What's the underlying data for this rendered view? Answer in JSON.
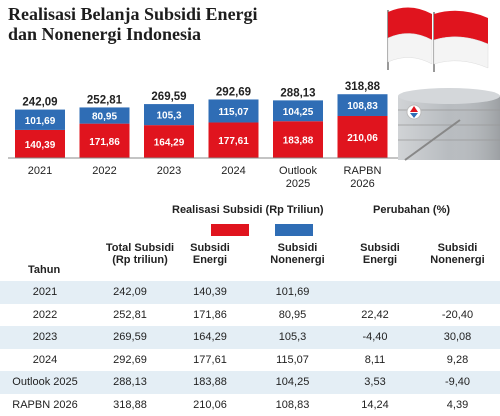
{
  "title_line1": "Realisasi Belanja Subsidi Energi",
  "title_line2": "dan Nonenergi Indonesia",
  "colors": {
    "energi": "#e0141e",
    "nonenergi": "#2f6db5",
    "row_alt": "#e4eef5"
  },
  "chart_data": {
    "type": "bar",
    "stacked": true,
    "categories": [
      "2021",
      "2022",
      "2023",
      "2024",
      "Outlook 2025",
      "RAPBN 2026"
    ],
    "category_lines": [
      [
        "2021"
      ],
      [
        "2022"
      ],
      [
        "2023"
      ],
      [
        "2024"
      ],
      [
        "Outlook",
        "2025"
      ],
      [
        "RAPBN",
        "2026"
      ]
    ],
    "series": [
      {
        "name": "Subsidi Energi",
        "values": [
          140.39,
          171.86,
          164.29,
          177.61,
          183.88,
          210.06
        ],
        "labels": [
          "140,39",
          "171,86",
          "164,29",
          "177,61",
          "183,88",
          "210,06"
        ]
      },
      {
        "name": "Subsidi Nonenergi",
        "values": [
          101.69,
          80.95,
          105.3,
          115.07,
          104.25,
          108.83
        ],
        "labels": [
          "101,69",
          "80,95",
          "105,3",
          "115,07",
          "104,25",
          "108,83"
        ]
      }
    ],
    "totals": [
      242.09,
      252.81,
      269.59,
      292.69,
      288.13,
      318.88
    ],
    "total_labels": [
      "242,09",
      "252,81",
      "269,59",
      "292,69",
      "288,13",
      "318,88"
    ]
  },
  "table": {
    "group_realisasi": "Realisasi Subsidi (Rp Triliun)",
    "group_perubahan": "Perubahan (%)",
    "col_tahun": "Tahun",
    "col_total": [
      "Total Subsidi",
      "(Rp triliun)"
    ],
    "col_energi": [
      "Subsidi",
      "Energi"
    ],
    "col_nonenergi": [
      "Subsidi",
      "Nonenergi"
    ],
    "col_ch_energi": [
      "Subsidi",
      "Energi"
    ],
    "col_ch_nonenergi": [
      "Subsidi",
      "Nonenergi"
    ],
    "rows": [
      [
        "2021",
        "242,09",
        "140,39",
        "101,69",
        "",
        ""
      ],
      [
        "2022",
        "252,81",
        "171,86",
        "80,95",
        "22,42",
        "-20,40"
      ],
      [
        "2023",
        "269,59",
        "164,29",
        "105,3",
        "-4,40",
        "30,08"
      ],
      [
        "2024",
        "292,69",
        "177,61",
        "115,07",
        "8,11",
        "9,28"
      ],
      [
        "Outlook 2025",
        "288,13",
        "183,88",
        "104,25",
        "3,53",
        "-9,40"
      ],
      [
        "RAPBN 2026",
        "318,88",
        "210,06",
        "108,83",
        "14,24",
        "4,39"
      ]
    ]
  }
}
